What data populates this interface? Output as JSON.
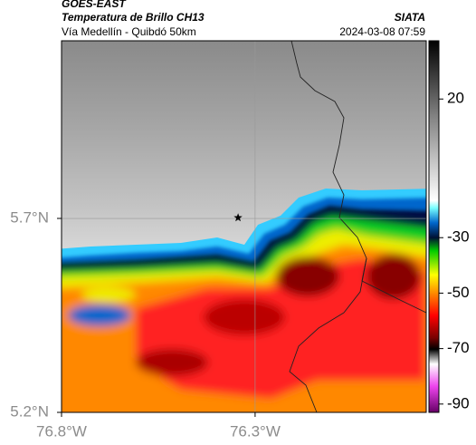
{
  "header": {
    "title": "GOES-EAST",
    "subtitle": "Temperatura de Brillo CH13",
    "route": "Vía Medellín - Quibdó 50km",
    "source": "SIATA",
    "timestamp": "2024-03-08 07:59"
  },
  "map": {
    "xlim": [
      -76.8,
      -75.858
    ],
    "ylim": [
      5.2,
      6.158
    ],
    "xticks": [
      {
        "value": -76.8,
        "label": "76.8°W"
      },
      {
        "value": -76.3,
        "label": "76.3°W"
      }
    ],
    "yticks": [
      {
        "value": 5.7,
        "label": "5.7°N"
      },
      {
        "value": 5.2,
        "label": "5.2°N"
      }
    ],
    "marker": {
      "lon": -76.344,
      "lat": 5.702
    },
    "grid": true
  },
  "colorbar": {
    "lim": [
      -93,
      41
    ],
    "ticks": [
      20,
      -30,
      -50,
      -70,
      -90
    ]
  }
}
